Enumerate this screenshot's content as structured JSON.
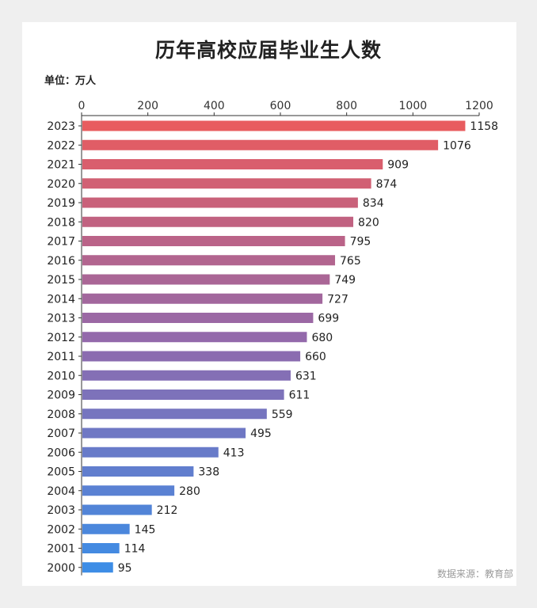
{
  "page": {
    "title": "历年高校应届毕业生人数",
    "unit_label": "单位：万人",
    "source": "数据来源：教育部"
  },
  "chart_data": {
    "type": "bar",
    "orientation": "horizontal",
    "title": "历年高校应届毕业生人数",
    "xlabel": "",
    "ylabel": "",
    "unit": "单位：万人",
    "xlim": [
      0,
      1200
    ],
    "xticks": [
      0,
      200,
      400,
      600,
      800,
      1000,
      1200
    ],
    "axis_position": "top",
    "grid": false,
    "categories": [
      "2023",
      "2022",
      "2021",
      "2020",
      "2019",
      "2018",
      "2017",
      "2016",
      "2015",
      "2014",
      "2013",
      "2012",
      "2011",
      "2010",
      "2009",
      "2008",
      "2007",
      "2006",
      "2005",
      "2004",
      "2003",
      "2002",
      "2001",
      "2000"
    ],
    "values": [
      1158,
      1076,
      909,
      874,
      834,
      820,
      795,
      765,
      749,
      727,
      699,
      680,
      660,
      631,
      611,
      559,
      495,
      413,
      338,
      280,
      212,
      145,
      114,
      95
    ],
    "colors": {
      "start": "#e85c5f",
      "middle": "#8f6aae",
      "end": "#3d8de6"
    }
  }
}
